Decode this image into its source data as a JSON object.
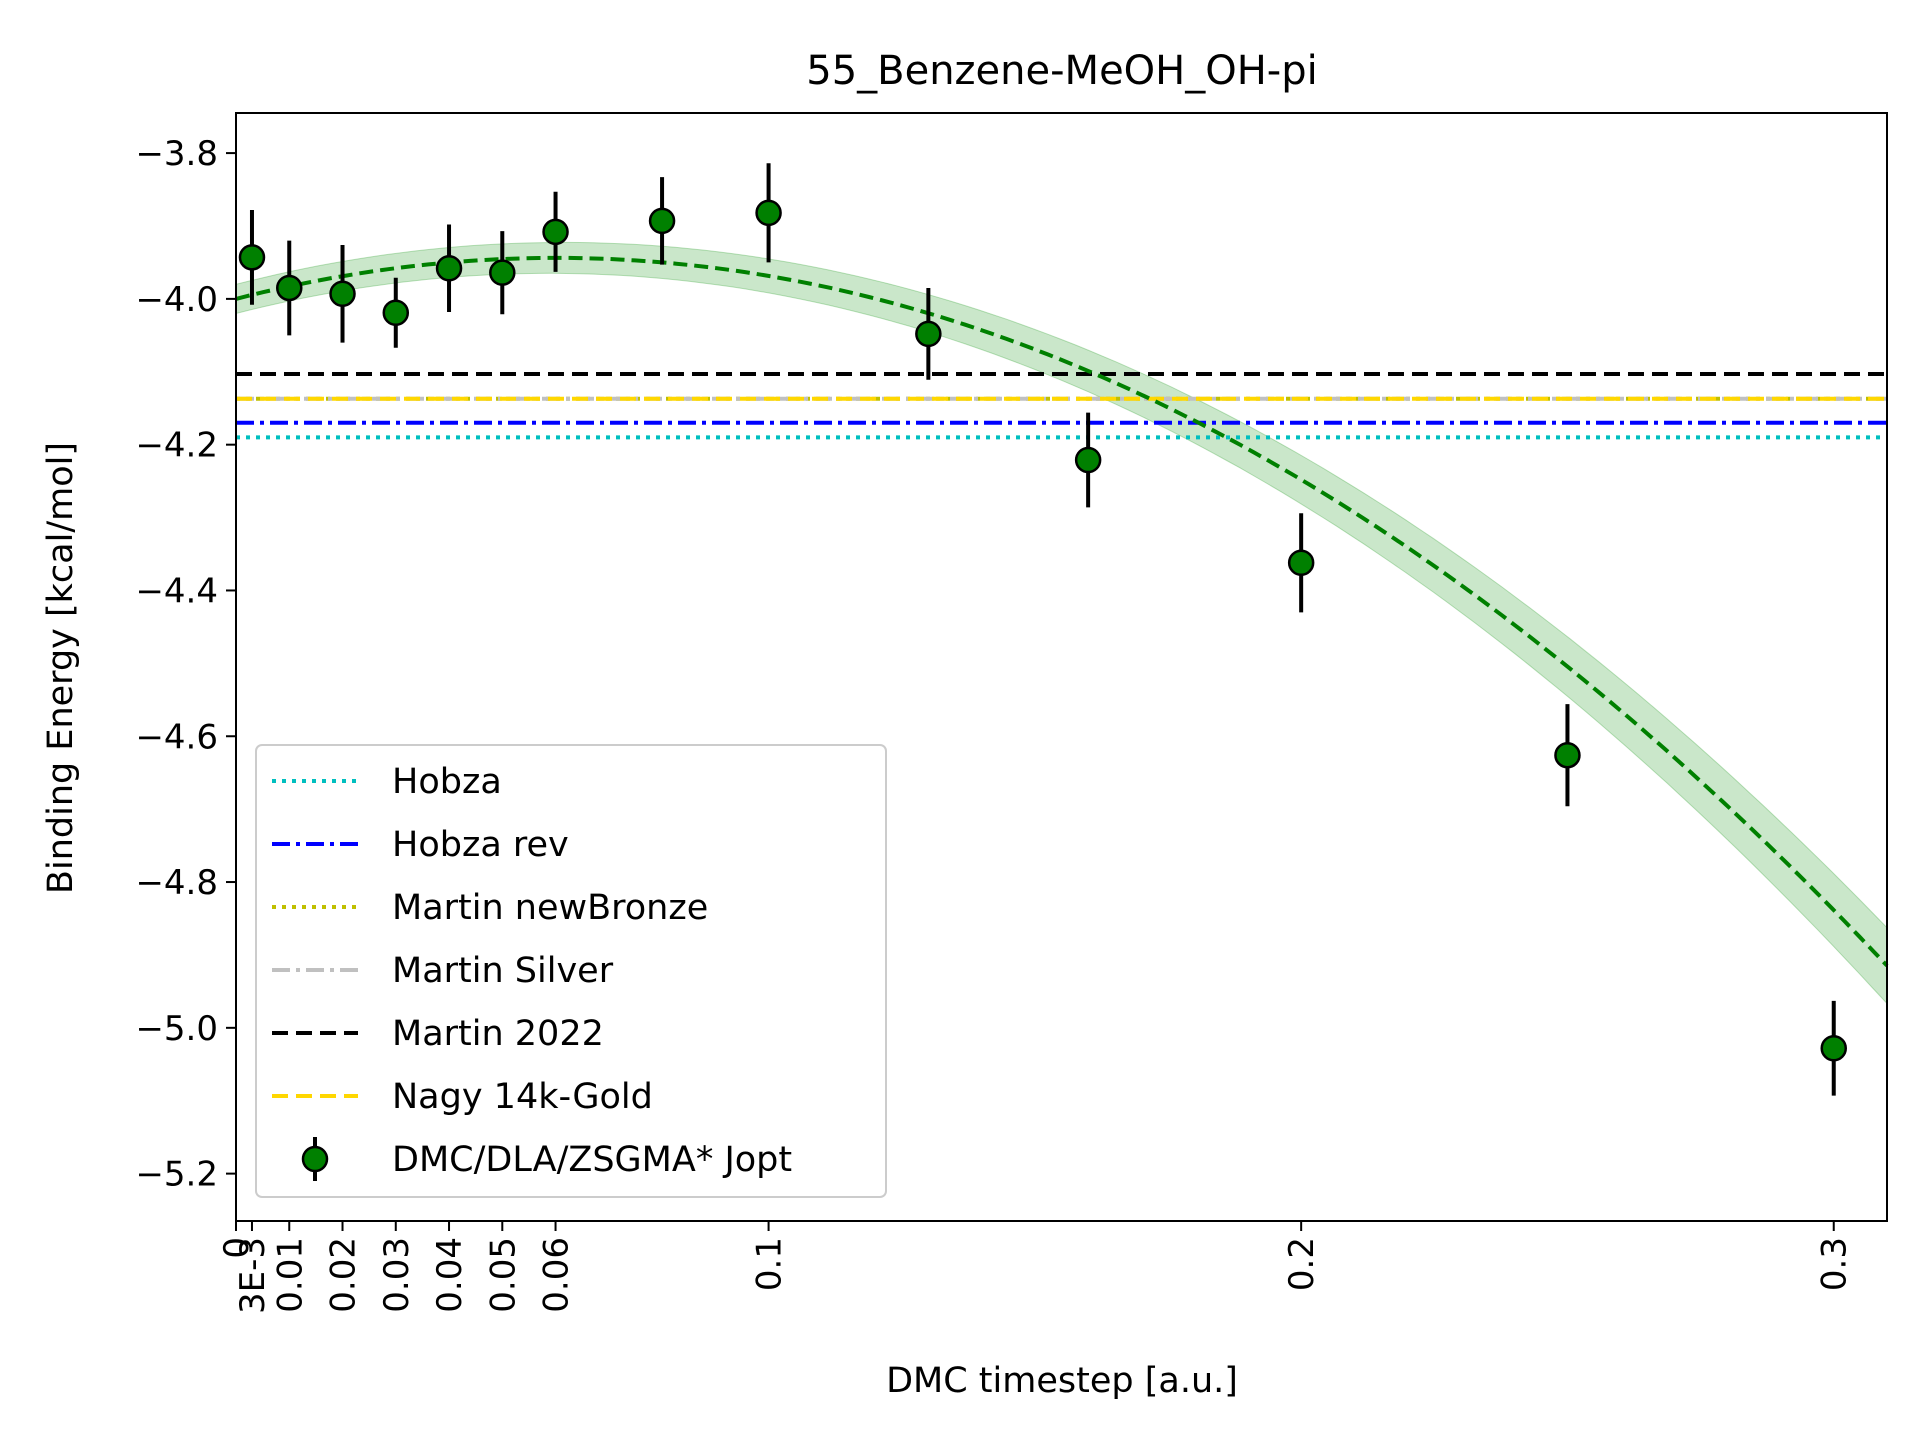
{
  "chart_data": {
    "type": "scatter",
    "title": "55_Benzene-MeOH_OH-pi",
    "xlabel": "DMC timestep [a.u.]",
    "ylabel": "Binding Energy [kcal/mol]",
    "xlim": [
      0,
      0.31
    ],
    "ylim": [
      -5.265,
      -3.745
    ],
    "grid": false,
    "legend_position": "lower-left",
    "x_ticks": [
      {
        "value": 0,
        "label": "0"
      },
      {
        "value": 0.003,
        "label": "3E-3"
      },
      {
        "value": 0.01,
        "label": "0.01"
      },
      {
        "value": 0.02,
        "label": "0.02"
      },
      {
        "value": 0.03,
        "label": "0.03"
      },
      {
        "value": 0.04,
        "label": "0.04"
      },
      {
        "value": 0.05,
        "label": "0.05"
      },
      {
        "value": 0.06,
        "label": "0.06"
      },
      {
        "value": 0.1,
        "label": "0.1"
      },
      {
        "value": 0.2,
        "label": "0.2"
      },
      {
        "value": 0.3,
        "label": "0.3"
      }
    ],
    "y_ticks": [
      {
        "value": -3.8,
        "label": "−3.8"
      },
      {
        "value": -4.0,
        "label": "−4.0"
      },
      {
        "value": -4.2,
        "label": "−4.2"
      },
      {
        "value": -4.4,
        "label": "−4.4"
      },
      {
        "value": -4.6,
        "label": "−4.6"
      },
      {
        "value": -4.8,
        "label": "−4.8"
      },
      {
        "value": -5.0,
        "label": "−5.0"
      },
      {
        "value": -5.2,
        "label": "−5.2"
      }
    ],
    "reference_lines": [
      {
        "name": "Hobza",
        "value": -4.19,
        "color": "#00bfbf",
        "dash": "dotted"
      },
      {
        "name": "Hobza rev",
        "value": -4.17,
        "color": "#0000ff",
        "dash": "dashdot"
      },
      {
        "name": "Martin newBronze",
        "value": -4.137,
        "color": "#bfbf00",
        "dash": "dotted"
      },
      {
        "name": "Martin Silver",
        "value": -4.137,
        "color": "#c0c0c0",
        "dash": "dashdot"
      },
      {
        "name": "Martin 2022",
        "value": -4.103,
        "color": "#000000",
        "dash": "dashed"
      },
      {
        "name": "Nagy 14k-Gold",
        "value": -4.137,
        "color": "#ffd700",
        "dash": "dashed"
      }
    ],
    "series": [
      {
        "name": "DMC/DLA/ZSGMA* Jopt",
        "color": "#008000",
        "x": [
          0.003,
          0.01,
          0.02,
          0.03,
          0.04,
          0.05,
          0.06,
          0.08,
          0.1,
          0.13,
          0.16,
          0.2,
          0.25,
          0.3
        ],
        "y": [
          -3.943,
          -3.985,
          -3.993,
          -4.019,
          -3.958,
          -3.964,
          -3.908,
          -3.893,
          -3.882,
          -4.048,
          -4.221,
          -4.362,
          -4.626,
          -5.028
        ],
        "yerr": [
          0.065,
          0.065,
          0.067,
          0.048,
          0.06,
          0.057,
          0.055,
          0.06,
          0.068,
          0.063,
          0.065,
          0.068,
          0.07,
          0.065
        ]
      }
    ],
    "fit": {
      "color": "#008000",
      "band_color": "#2ca02c",
      "band_half_width": 0.02,
      "coefficients": [
        -4.0,
        1.87,
        -15.55
      ],
      "x_range": [
        0,
        0.31
      ]
    }
  }
}
